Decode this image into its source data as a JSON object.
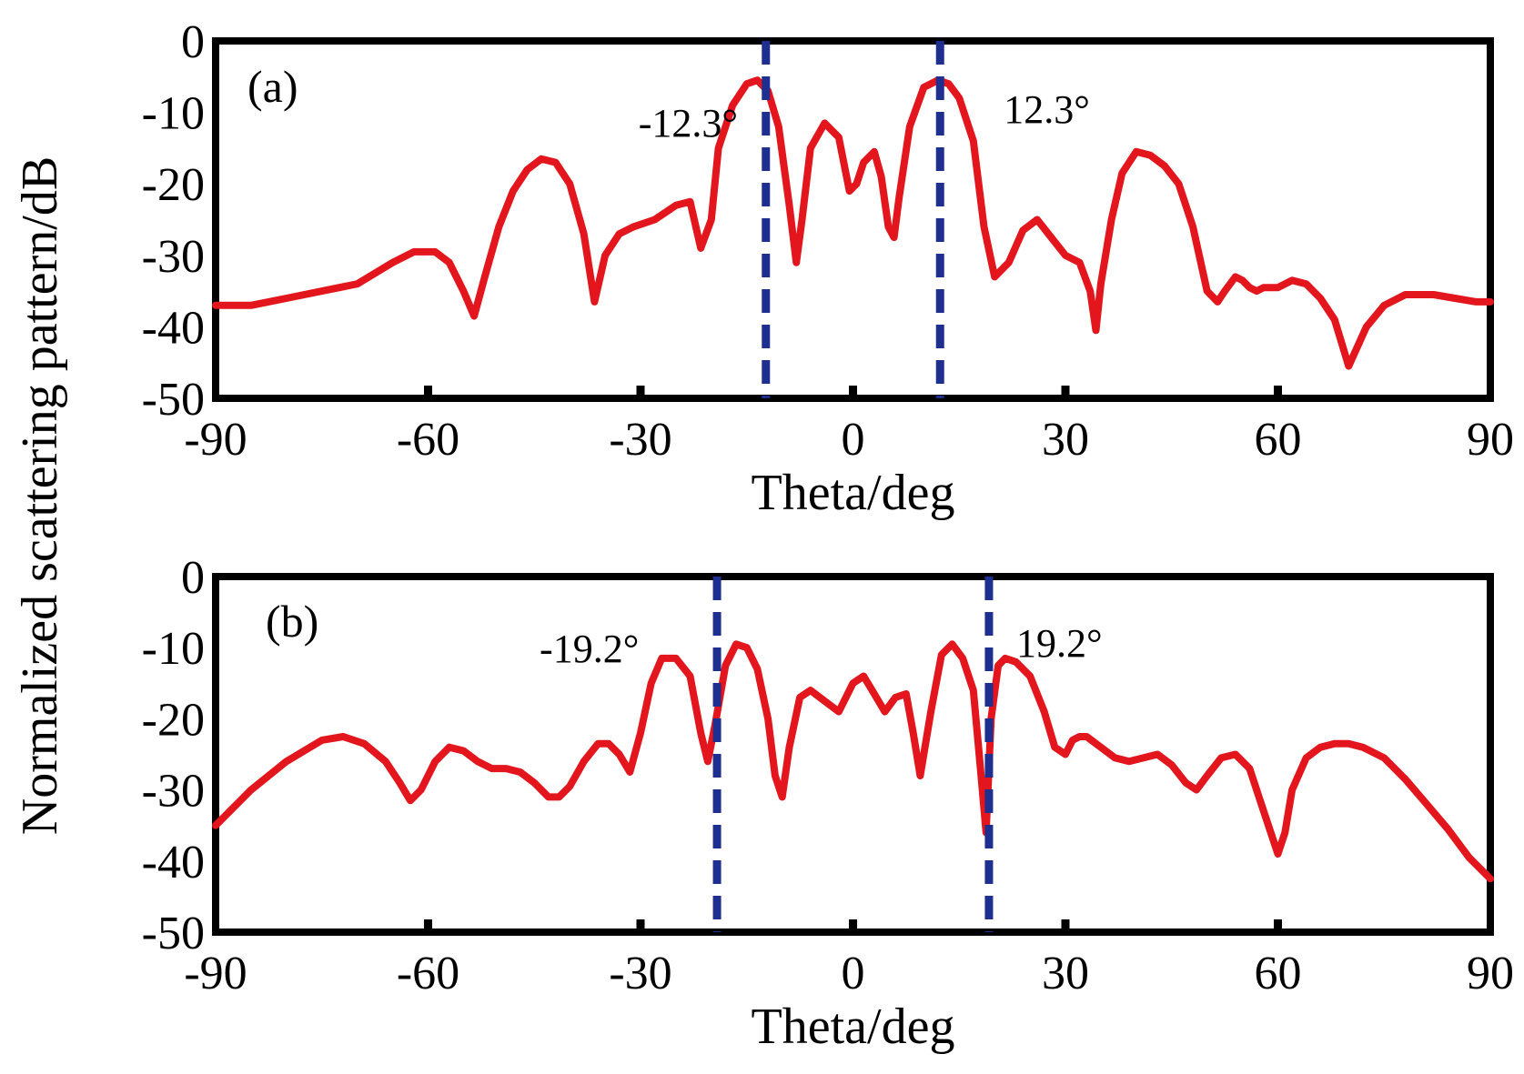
{
  "figure": {
    "ylabel": "Normalized scattering pattern/dB"
  },
  "chart_data": [
    {
      "type": "line",
      "panel_label": "(a)",
      "xlabel": "Theta/deg",
      "ylabel": "Normalized scattering pattern/dB",
      "xlim": [
        -90,
        90
      ],
      "ylim": [
        -50,
        0
      ],
      "x_ticks": [
        "-90",
        "-60",
        "-30",
        "0",
        "30",
        "60",
        "90"
      ],
      "y_ticks": [
        "0",
        "-10",
        "-20",
        "-30",
        "-40",
        "-50"
      ],
      "grid": false,
      "line_color": "#e3151d",
      "marker_color": "#1f2f8f",
      "markers": [
        {
          "x": -12.3,
          "label": "-12.3°"
        },
        {
          "x": 12.3,
          "label": "12.3°"
        }
      ],
      "series": [
        {
          "x": [
            -90,
            -85,
            -80,
            -75,
            -70,
            -65,
            -62,
            -59,
            -57,
            -55,
            -53.5,
            -52,
            -50,
            -48,
            -46,
            -44,
            -42,
            -40,
            -38,
            -36.5,
            -35,
            -33,
            -31,
            -28,
            -25,
            -23,
            -21.5,
            -20,
            -19,
            -17,
            -15,
            -13.5,
            -12,
            -10.5,
            -9,
            -8,
            -7.2,
            -6,
            -4,
            -2,
            -0.5,
            0.5,
            1.5,
            3,
            4,
            5,
            5.8,
            6.5,
            8,
            10,
            12,
            13.5,
            15,
            17,
            18.5,
            20,
            22,
            24,
            26,
            28,
            30,
            32,
            33.5,
            34.3,
            35,
            36.5,
            38,
            40,
            42,
            44,
            46,
            48,
            50,
            51.5,
            52.5,
            54,
            55,
            56,
            57,
            58,
            60,
            62,
            64,
            66,
            68,
            70,
            72.5,
            75,
            78,
            80,
            82,
            85,
            88,
            90
          ],
          "y": [
            -37,
            -37,
            -36,
            -35,
            -34,
            -31,
            -29.5,
            -29.5,
            -31,
            -35,
            -38.5,
            -33,
            -26,
            -21,
            -18,
            -16.5,
            -17,
            -20,
            -27,
            -36.5,
            -30,
            -27,
            -26,
            -25,
            -23,
            -22.5,
            -29,
            -25,
            -15,
            -9,
            -6,
            -5.5,
            -7,
            -12,
            -23,
            -31,
            -25,
            -15,
            -11.5,
            -13.5,
            -21,
            -20,
            -17,
            -15.5,
            -19,
            -26,
            -27.5,
            -22,
            -12,
            -6.5,
            -5.5,
            -6,
            -8,
            -14,
            -26,
            -33,
            -31,
            -26.5,
            -25,
            -27.5,
            -30,
            -31,
            -35,
            -40.5,
            -34,
            -25,
            -18.5,
            -15.5,
            -16,
            -17.5,
            -20,
            -26,
            -35,
            -36.5,
            -35,
            -33,
            -33.5,
            -34.5,
            -35,
            -34.5,
            -34.5,
            -33.5,
            -34,
            -36,
            -39,
            -45.5,
            -40,
            -37,
            -35.5,
            -35.5,
            -35.5,
            -36,
            -36.5,
            -36.5
          ]
        }
      ]
    },
    {
      "type": "line",
      "panel_label": "(b)",
      "xlabel": "Theta/deg",
      "ylabel": "Normalized scattering pattern/dB",
      "xlim": [
        -90,
        90
      ],
      "ylim": [
        -50,
        0
      ],
      "x_ticks": [
        "-90",
        "-60",
        "-30",
        "0",
        "30",
        "60",
        "90"
      ],
      "y_ticks": [
        "0",
        "-10",
        "-20",
        "-30",
        "-40",
        "-50"
      ],
      "grid": false,
      "line_color": "#e3151d",
      "marker_color": "#1f2f8f",
      "markers": [
        {
          "x": -19.2,
          "label": "-19.2°"
        },
        {
          "x": 19.2,
          "label": "19.2°"
        }
      ],
      "series": [
        {
          "x": [
            -90,
            -85,
            -80,
            -75,
            -72,
            -69,
            -66,
            -64,
            -62.5,
            -61,
            -59,
            -57,
            -55,
            -53,
            -51,
            -49,
            -47,
            -45,
            -43,
            -41.5,
            -40,
            -38,
            -36,
            -34.5,
            -33,
            -31.5,
            -30,
            -28.5,
            -27,
            -25,
            -23,
            -21.5,
            -20.5,
            -19.5,
            -18,
            -16.5,
            -15,
            -13.5,
            -12,
            -11,
            -10,
            -9,
            -7.5,
            -6,
            -4,
            -2,
            0,
            1.5,
            3,
            4.5,
            6,
            7.5,
            8.5,
            9.5,
            11,
            12.5,
            14,
            15.5,
            17,
            18,
            18.8,
            19.5,
            20.5,
            21.5,
            23,
            25,
            27,
            28.5,
            30,
            31,
            32,
            33,
            35,
            37,
            39,
            41,
            43,
            45,
            47,
            48.5,
            50,
            52,
            54,
            56,
            58,
            60,
            61,
            62,
            64,
            66,
            68,
            70,
            72,
            75,
            78,
            81,
            84,
            87,
            90
          ],
          "y": [
            -35,
            -30,
            -26,
            -23,
            -22.5,
            -23.5,
            -26,
            -29,
            -31.5,
            -30,
            -26,
            -24,
            -24.5,
            -26,
            -27,
            -27,
            -27.5,
            -29,
            -31,
            -31,
            -29.5,
            -26,
            -23.5,
            -23.5,
            -25,
            -27.5,
            -22,
            -15,
            -11.5,
            -11.5,
            -14,
            -22,
            -26,
            -21,
            -12.5,
            -9.5,
            -10,
            -13,
            -20,
            -28,
            -31,
            -24,
            -17,
            -16,
            -17.5,
            -19,
            -15,
            -14,
            -16.5,
            -19,
            -17,
            -16.5,
            -22,
            -28,
            -19,
            -11,
            -9.5,
            -11.5,
            -16,
            -27,
            -36,
            -20,
            -12.5,
            -11.5,
            -12,
            -14,
            -19,
            -24,
            -25,
            -23,
            -22.5,
            -22.5,
            -24,
            -25.5,
            -26,
            -25.5,
            -25,
            -26.5,
            -29,
            -30,
            -28,
            -25.5,
            -25,
            -27,
            -33,
            -39,
            -36,
            -30,
            -25.5,
            -24,
            -23.5,
            -23.5,
            -24,
            -25.5,
            -28.5,
            -32,
            -35.5,
            -39.5,
            -42.5
          ]
        }
      ]
    }
  ]
}
